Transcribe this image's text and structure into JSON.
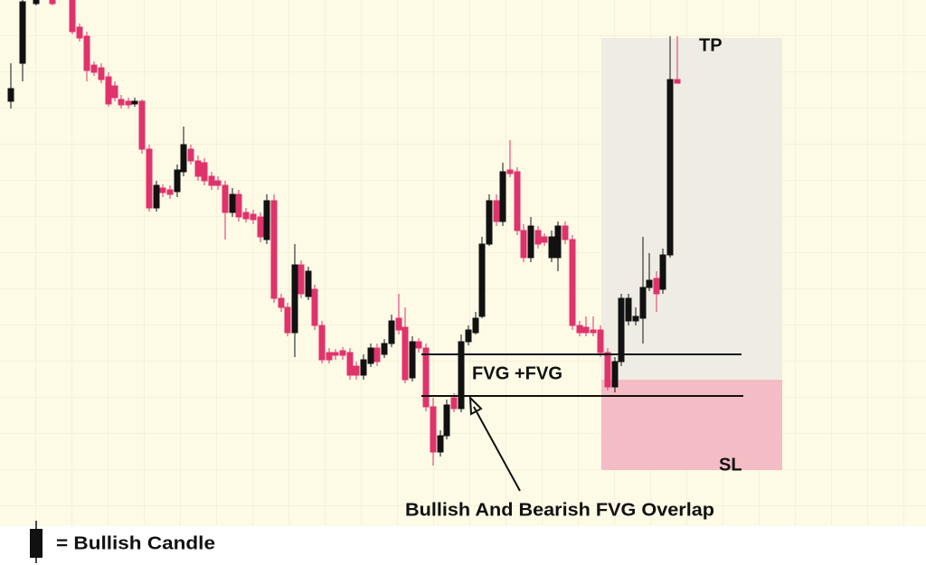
{
  "annotations": {
    "tp": "TP",
    "sl": "SL",
    "fvg": "FVG +FVG",
    "overlap": "Bullish And Bearish FVG Overlap"
  },
  "legend": {
    "label": "= Bullish Candle"
  }
}
